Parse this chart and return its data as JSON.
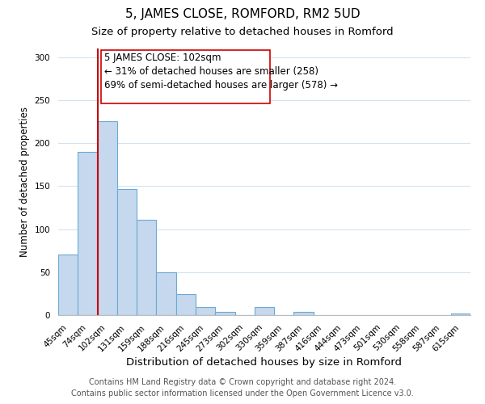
{
  "title": "5, JAMES CLOSE, ROMFORD, RM2 5UD",
  "subtitle": "Size of property relative to detached houses in Romford",
  "xlabel": "Distribution of detached houses by size in Romford",
  "ylabel": "Number of detached properties",
  "bar_labels": [
    "45sqm",
    "74sqm",
    "102sqm",
    "131sqm",
    "159sqm",
    "188sqm",
    "216sqm",
    "245sqm",
    "273sqm",
    "302sqm",
    "330sqm",
    "359sqm",
    "387sqm",
    "416sqm",
    "444sqm",
    "473sqm",
    "501sqm",
    "530sqm",
    "558sqm",
    "587sqm",
    "615sqm"
  ],
  "bar_values": [
    70,
    190,
    225,
    147,
    111,
    50,
    24,
    9,
    4,
    0,
    9,
    0,
    4,
    0,
    0,
    0,
    0,
    0,
    0,
    0,
    2
  ],
  "bar_color": "#c5d8ee",
  "bar_edge_color": "#6aaad4",
  "vline_color": "#cc0000",
  "annotation_text": "5 JAMES CLOSE: 102sqm\n← 31% of detached houses are smaller (258)\n69% of semi-detached houses are larger (578) →",
  "annotation_box_edgecolor": "#cc0000",
  "annotation_fontsize": 8.5,
  "ylim": [
    0,
    310
  ],
  "yticks": [
    0,
    50,
    100,
    150,
    200,
    250,
    300
  ],
  "footer_line1": "Contains HM Land Registry data © Crown copyright and database right 2024.",
  "footer_line2": "Contains public sector information licensed under the Open Government Licence v3.0.",
  "title_fontsize": 11,
  "subtitle_fontsize": 9.5,
  "xlabel_fontsize": 9.5,
  "ylabel_fontsize": 8.5,
  "tick_fontsize": 7.5,
  "footer_fontsize": 7.0,
  "grid_color": "#d0e4f0"
}
